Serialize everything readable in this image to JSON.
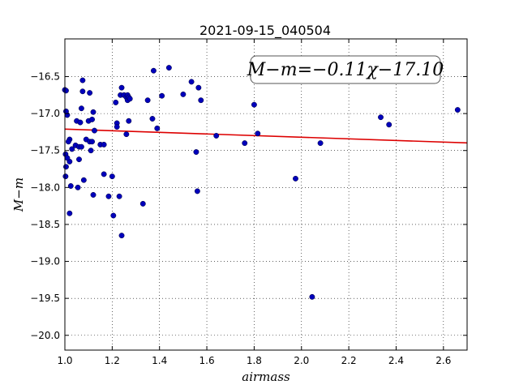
{
  "chart_data": {
    "type": "scatter",
    "title": "2021-09-15_040504",
    "xlabel": "airmass",
    "ylabel": "M−m",
    "xlim": [
      1.0,
      2.7
    ],
    "ylim": [
      -15.99,
      -20.2
    ],
    "y_inverted": true,
    "grid": true,
    "grid_style": "dotted",
    "x_ticks": [
      1.0,
      1.2,
      1.4,
      1.6,
      1.8,
      2.0,
      2.2,
      2.4,
      2.6
    ],
    "x_tick_labels": [
      "1.0",
      "1.2",
      "1.4",
      "1.6",
      "1.8",
      "2.0",
      "2.2",
      "2.4",
      "2.6"
    ],
    "y_ticks": [
      -16.5,
      -17.0,
      -17.5,
      -18.0,
      -18.5,
      -19.0,
      -19.5,
      -20.0
    ],
    "y_tick_labels": [
      "−16.5",
      "−17.0",
      "−17.5",
      "−18.0",
      "−18.5",
      "−19.0",
      "−19.5",
      "−20.0"
    ],
    "annotation": "M−m=−0.11χ−17.10",
    "fit": {
      "slope": -0.11,
      "intercept": -17.1,
      "color": "#dd0000"
    },
    "marker_color": "#0000bb",
    "x": [
      1.0,
      1.005,
      1.01,
      1.02,
      1.015,
      1.003,
      1.02,
      1.025,
      1.005,
      1.01,
      1.02,
      1.003,
      1.005,
      1.03,
      1.045,
      1.05,
      1.06,
      1.055,
      1.065,
      1.06,
      1.07,
      1.07,
      1.075,
      1.075,
      1.08,
      1.09,
      1.1,
      1.105,
      1.105,
      1.11,
      1.115,
      1.115,
      1.12,
      1.12,
      1.125,
      1.15,
      1.165,
      1.165,
      1.185,
      1.2,
      1.205,
      1.215,
      1.22,
      1.22,
      1.23,
      1.235,
      1.24,
      1.24,
      1.25,
      1.26,
      1.26,
      1.265,
      1.265,
      1.27,
      1.27,
      1.275,
      1.33,
      1.35,
      1.37,
      1.375,
      1.39,
      1.41,
      1.44,
      1.5,
      1.535,
      1.555,
      1.56,
      1.565,
      1.575,
      1.64,
      1.76,
      1.8,
      1.815,
      1.975,
      2.045,
      2.08,
      2.335,
      2.37,
      2.66
    ],
    "y": [
      -16.68,
      -16.69,
      -17.02,
      -17.35,
      -17.38,
      -17.55,
      -17.65,
      -17.98,
      -17.72,
      -17.6,
      -18.35,
      -17.85,
      -16.97,
      -17.48,
      -17.43,
      -17.1,
      -17.62,
      -18.0,
      -17.12,
      -17.45,
      -16.93,
      -17.45,
      -16.55,
      -16.7,
      -17.9,
      -17.35,
      -17.1,
      -16.72,
      -17.38,
      -17.5,
      -17.08,
      -17.38,
      -16.98,
      -18.1,
      -17.23,
      -17.42,
      -17.42,
      -17.82,
      -18.12,
      -17.85,
      -18.38,
      -16.85,
      -17.13,
      -17.18,
      -18.12,
      -16.75,
      -16.65,
      -18.65,
      -16.75,
      -16.78,
      -17.28,
      -16.75,
      -16.82,
      -17.1,
      -16.78,
      -16.8,
      -18.22,
      -16.82,
      -17.07,
      -16.42,
      -17.2,
      -16.76,
      -16.38,
      -16.74,
      -16.57,
      -17.52,
      -18.05,
      -16.65,
      -16.82,
      -17.3,
      -17.4,
      -16.88,
      -17.27,
      -17.88,
      -19.48,
      -17.4,
      -17.05,
      -17.15,
      -16.95
    ]
  }
}
